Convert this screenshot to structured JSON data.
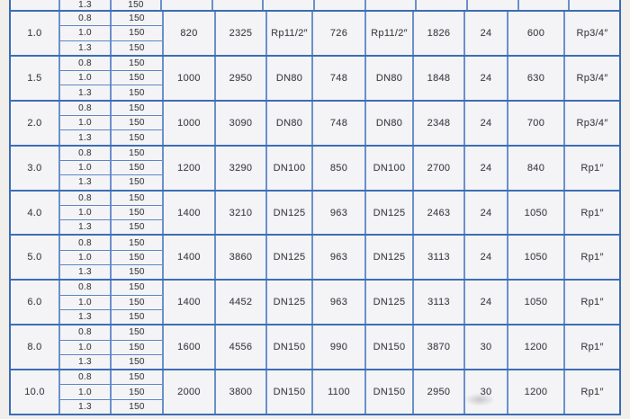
{
  "page": {
    "background": "#f1efec"
  },
  "table": {
    "colors": {
      "strong_border": "#3c6db5",
      "light_border": "#6b90cb",
      "cell_background": "#f4f4f6",
      "text": "#44464b"
    },
    "partial_top_row": {
      "ratio": "1.3",
      "value": "150",
      "empty_trailing_cells": 9
    },
    "sub_rows": [
      {
        "ratio": "0.8",
        "value": "150"
      },
      {
        "ratio": "1.0",
        "value": "150"
      },
      {
        "ratio": "1.3",
        "value": "150"
      }
    ],
    "merged_col_widths": [
      58,
      57,
      51,
      59,
      53,
      57,
      48,
      63,
      60
    ],
    "groups": [
      {
        "size": "1.0",
        "values": [
          "820",
          "2325",
          "Rp11/2″",
          "726",
          "Rp11/2″",
          "1826",
          "24",
          "600",
          "Rp3/4″"
        ]
      },
      {
        "size": "1.5",
        "values": [
          "1000",
          "2950",
          "DN80",
          "748",
          "DN80",
          "1848",
          "24",
          "630",
          "Rp3/4″"
        ]
      },
      {
        "size": "2.0",
        "values": [
          "1000",
          "3090",
          "DN80",
          "748",
          "DN80",
          "2348",
          "24",
          "700",
          "Rp3/4″"
        ]
      },
      {
        "size": "3.0",
        "values": [
          "1200",
          "3290",
          "DN100",
          "850",
          "DN100",
          "2700",
          "24",
          "840",
          "Rp1″"
        ]
      },
      {
        "size": "4.0",
        "values": [
          "1400",
          "3210",
          "DN125",
          "963",
          "DN125",
          "2463",
          "24",
          "1050",
          "Rp1″"
        ]
      },
      {
        "size": "5.0",
        "values": [
          "1400",
          "3860",
          "DN125",
          "963",
          "DN125",
          "3113",
          "24",
          "1050",
          "Rp1″"
        ]
      },
      {
        "size": "6.0",
        "values": [
          "1400",
          "4452",
          "DN125",
          "963",
          "DN125",
          "3113",
          "24",
          "1050",
          "Rp1″"
        ]
      },
      {
        "size": "8.0",
        "values": [
          "1600",
          "4556",
          "DN150",
          "990",
          "DN150",
          "3870",
          "30",
          "1200",
          "Rp1″"
        ]
      },
      {
        "size": "10.0",
        "values": [
          "2000",
          "3800",
          "DN150",
          "1100",
          "DN150",
          "2950",
          "30",
          "1200",
          "Rp1″"
        ]
      }
    ]
  }
}
